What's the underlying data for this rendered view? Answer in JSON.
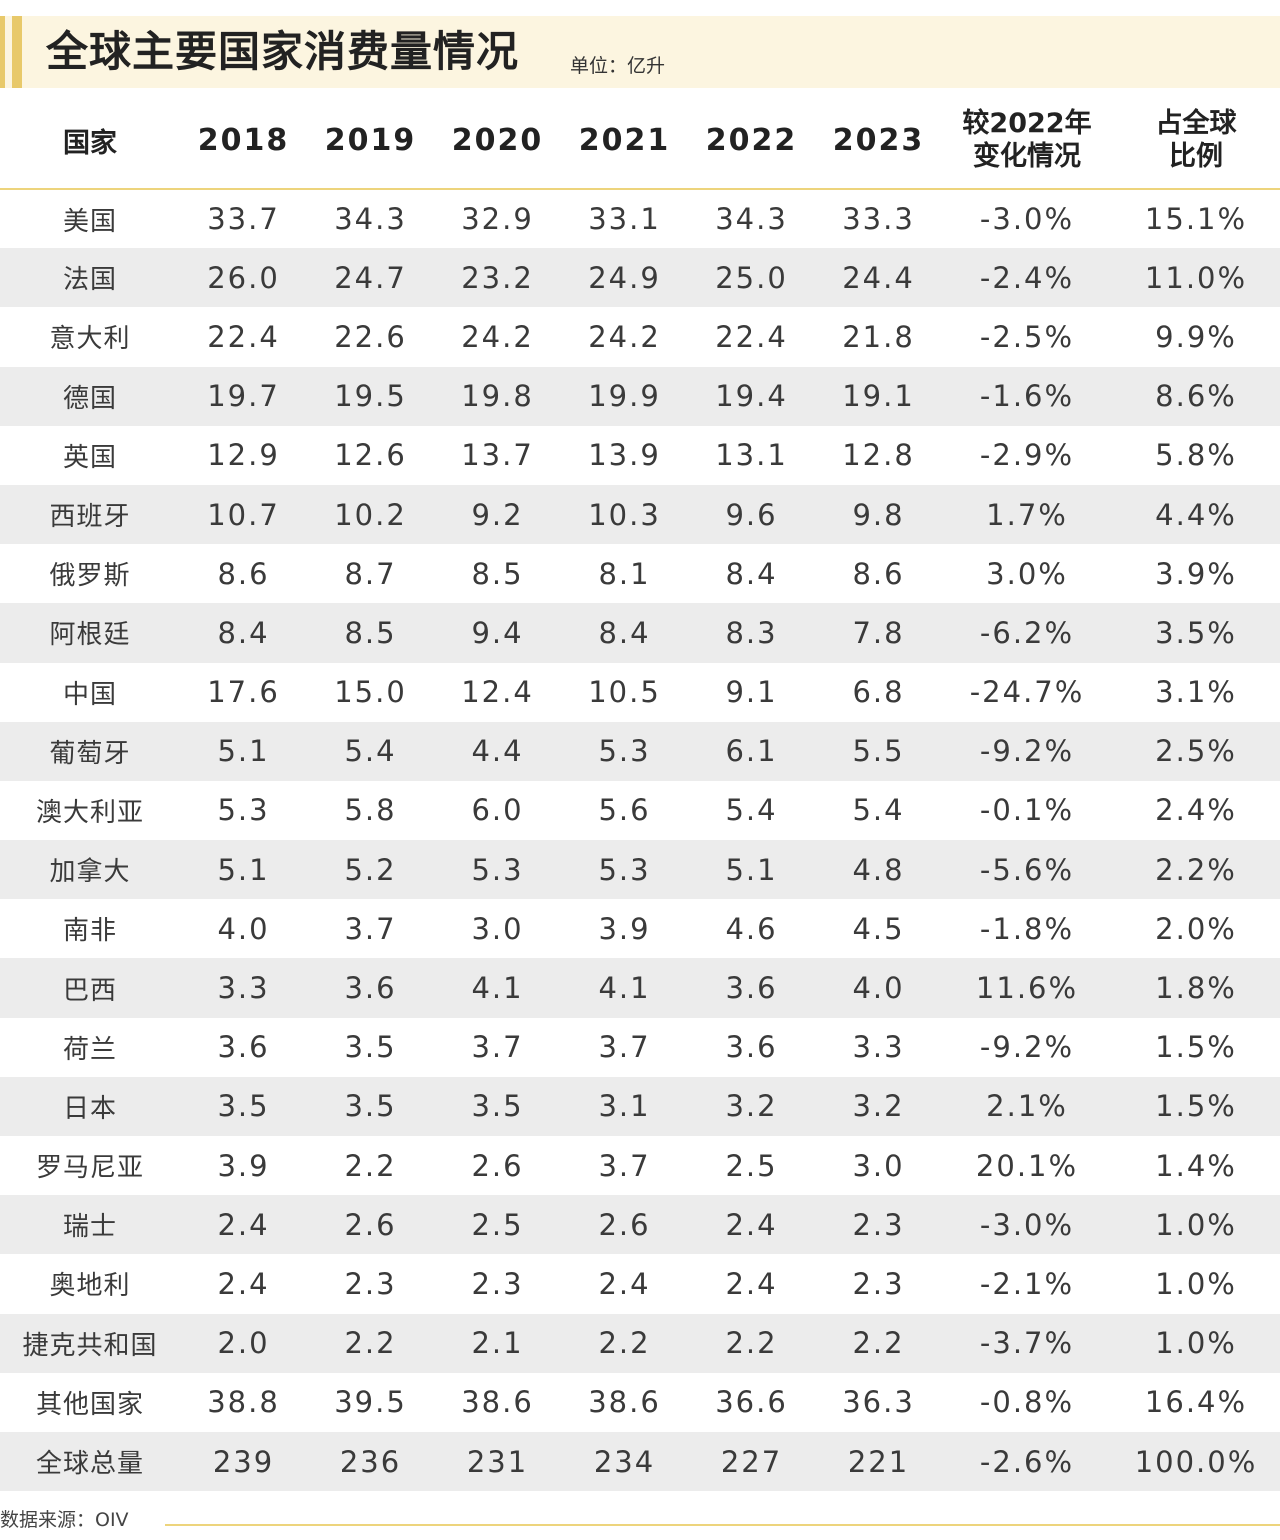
{
  "title": "全球主要国家消费量情况",
  "unit": "单位：亿升",
  "source": "数据来源：OIV",
  "colors": {
    "accent": "#e8c96a",
    "header_bg": "#fcf5e0",
    "row_alt": "#ececec",
    "rule": "#edd47c"
  },
  "chart_data": {
    "type": "table",
    "title": "全球主要国家消费量情况",
    "unit": "单位：亿升",
    "columns": [
      "国家",
      "2018",
      "2019",
      "2020",
      "2021",
      "2022",
      "2023",
      "较2022年\n变化情况",
      "占全球\n比例"
    ],
    "rows": [
      [
        "美国",
        "33.7",
        "34.3",
        "32.9",
        "33.1",
        "34.3",
        "33.3",
        "-3.0%",
        "15.1%"
      ],
      [
        "法国",
        "26.0",
        "24.7",
        "23.2",
        "24.9",
        "25.0",
        "24.4",
        "-2.4%",
        "11.0%"
      ],
      [
        "意大利",
        "22.4",
        "22.6",
        "24.2",
        "24.2",
        "22.4",
        "21.8",
        "-2.5%",
        "9.9%"
      ],
      [
        "德国",
        "19.7",
        "19.5",
        "19.8",
        "19.9",
        "19.4",
        "19.1",
        "-1.6%",
        "8.6%"
      ],
      [
        "英国",
        "12.9",
        "12.6",
        "13.7",
        "13.9",
        "13.1",
        "12.8",
        "-2.9%",
        "5.8%"
      ],
      [
        "西班牙",
        "10.7",
        "10.2",
        "9.2",
        "10.3",
        "9.6",
        "9.8",
        "1.7%",
        "4.4%"
      ],
      [
        "俄罗斯",
        "8.6",
        "8.7",
        "8.5",
        "8.1",
        "8.4",
        "8.6",
        "3.0%",
        "3.9%"
      ],
      [
        "阿根廷",
        "8.4",
        "8.5",
        "9.4",
        "8.4",
        "8.3",
        "7.8",
        "-6.2%",
        "3.5%"
      ],
      [
        "中国",
        "17.6",
        "15.0",
        "12.4",
        "10.5",
        "9.1",
        "6.8",
        "-24.7%",
        "3.1%"
      ],
      [
        "葡萄牙",
        "5.1",
        "5.4",
        "4.4",
        "5.3",
        "6.1",
        "5.5",
        "-9.2%",
        "2.5%"
      ],
      [
        "澳大利亚",
        "5.3",
        "5.8",
        "6.0",
        "5.6",
        "5.4",
        "5.4",
        "-0.1%",
        "2.4%"
      ],
      [
        "加拿大",
        "5.1",
        "5.2",
        "5.3",
        "5.3",
        "5.1",
        "4.8",
        "-5.6%",
        "2.2%"
      ],
      [
        "南非",
        "4.0",
        "3.7",
        "3.0",
        "3.9",
        "4.6",
        "4.5",
        "-1.8%",
        "2.0%"
      ],
      [
        "巴西",
        "3.3",
        "3.6",
        "4.1",
        "4.1",
        "3.6",
        "4.0",
        "11.6%",
        "1.8%"
      ],
      [
        "荷兰",
        "3.6",
        "3.5",
        "3.7",
        "3.7",
        "3.6",
        "3.3",
        "-9.2%",
        "1.5%"
      ],
      [
        "日本",
        "3.5",
        "3.5",
        "3.5",
        "3.1",
        "3.2",
        "3.2",
        "2.1%",
        "1.5%"
      ],
      [
        "罗马尼亚",
        "3.9",
        "2.2",
        "2.6",
        "3.7",
        "2.5",
        "3.0",
        "20.1%",
        "1.4%"
      ],
      [
        "瑞士",
        "2.4",
        "2.6",
        "2.5",
        "2.6",
        "2.4",
        "2.3",
        "-3.0%",
        "1.0%"
      ],
      [
        "奥地利",
        "2.4",
        "2.3",
        "2.3",
        "2.4",
        "2.4",
        "2.3",
        "-2.1%",
        "1.0%"
      ],
      [
        "捷克共和国",
        "2.0",
        "2.2",
        "2.1",
        "2.2",
        "2.2",
        "2.2",
        "-3.7%",
        "1.0%"
      ],
      [
        "其他国家",
        "38.8",
        "39.5",
        "38.6",
        "38.6",
        "36.6",
        "36.3",
        "-0.8%",
        "16.4%"
      ],
      [
        "全球总量",
        "239",
        "236",
        "231",
        "234",
        "227",
        "221",
        "-2.6%",
        "100.0%"
      ]
    ]
  }
}
